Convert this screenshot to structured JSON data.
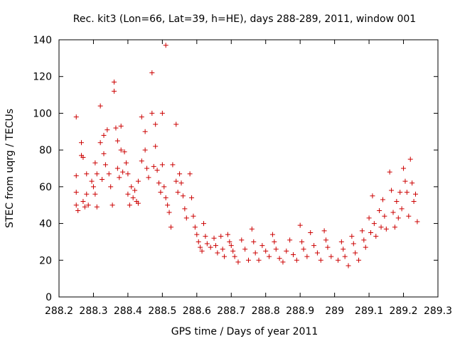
{
  "chart_data": {
    "type": "scatter",
    "title": "Rec. kit3 (Lon=66, Lat=39, h=HE), days 288-289, 2011, window 001",
    "xlabel": "GPS time / Days of year 2011",
    "ylabel": "STEC from uqrg / TECUs",
    "xlim": [
      288.2,
      289.3
    ],
    "ylim": [
      0,
      140
    ],
    "xticks": [
      "288.2",
      "288.3",
      "288.4",
      "288.5",
      "288.6",
      "288.7",
      "288.8",
      "288.9",
      "289",
      "289.1",
      "289.2",
      "289.3"
    ],
    "yticks": [
      "0",
      "20",
      "40",
      "60",
      "80",
      "100",
      "120",
      "140"
    ],
    "marker": "+",
    "color": "#cc0000",
    "series": [
      {
        "name": "STEC",
        "points": [
          [
            288.25,
            98
          ],
          [
            288.25,
            66
          ],
          [
            288.25,
            57
          ],
          [
            288.25,
            50
          ],
          [
            288.255,
            47
          ],
          [
            288.265,
            84
          ],
          [
            288.265,
            77
          ],
          [
            288.27,
            76
          ],
          [
            288.28,
            67
          ],
          [
            288.28,
            56
          ],
          [
            288.27,
            52
          ],
          [
            288.275,
            49
          ],
          [
            288.285,
            50
          ],
          [
            288.295,
            63
          ],
          [
            288.3,
            60
          ],
          [
            288.305,
            73
          ],
          [
            288.305,
            56
          ],
          [
            288.31,
            67
          ],
          [
            288.31,
            49
          ],
          [
            288.32,
            104
          ],
          [
            288.32,
            84
          ],
          [
            288.325,
            64
          ],
          [
            288.33,
            88
          ],
          [
            288.33,
            78
          ],
          [
            288.335,
            72
          ],
          [
            288.34,
            91
          ],
          [
            288.345,
            67
          ],
          [
            288.35,
            60
          ],
          [
            288.355,
            50
          ],
          [
            288.36,
            117
          ],
          [
            288.36,
            112
          ],
          [
            288.365,
            92
          ],
          [
            288.37,
            85
          ],
          [
            288.37,
            70
          ],
          [
            288.375,
            65
          ],
          [
            288.38,
            93
          ],
          [
            288.38,
            80
          ],
          [
            288.385,
            68
          ],
          [
            288.39,
            79
          ],
          [
            288.395,
            73
          ],
          [
            288.4,
            67
          ],
          [
            288.4,
            56
          ],
          [
            288.405,
            50
          ],
          [
            288.41,
            60
          ],
          [
            288.415,
            54
          ],
          [
            288.42,
            58
          ],
          [
            288.425,
            52
          ],
          [
            288.43,
            63
          ],
          [
            288.43,
            51
          ],
          [
            288.44,
            74
          ],
          [
            288.44,
            98
          ],
          [
            288.45,
            90
          ],
          [
            288.45,
            80
          ],
          [
            288.455,
            70
          ],
          [
            288.46,
            65
          ],
          [
            288.47,
            122
          ],
          [
            288.47,
            100
          ],
          [
            288.475,
            71
          ],
          [
            288.48,
            94
          ],
          [
            288.48,
            82
          ],
          [
            288.485,
            69
          ],
          [
            288.49,
            62
          ],
          [
            288.495,
            57
          ],
          [
            288.5,
            100
          ],
          [
            288.5,
            72
          ],
          [
            288.505,
            60
          ],
          [
            288.51,
            137
          ],
          [
            288.51,
            54
          ],
          [
            288.515,
            50
          ],
          [
            288.52,
            46
          ],
          [
            288.525,
            38
          ],
          [
            288.53,
            72
          ],
          [
            288.54,
            94
          ],
          [
            288.54,
            63
          ],
          [
            288.545,
            57
          ],
          [
            288.55,
            67
          ],
          [
            288.555,
            62
          ],
          [
            288.56,
            55
          ],
          [
            288.565,
            48
          ],
          [
            288.57,
            43
          ],
          [
            288.58,
            67
          ],
          [
            288.585,
            54
          ],
          [
            288.59,
            44
          ],
          [
            288.595,
            38
          ],
          [
            288.6,
            34
          ],
          [
            288.605,
            30
          ],
          [
            288.61,
            27
          ],
          [
            288.615,
            25
          ],
          [
            288.62,
            40
          ],
          [
            288.625,
            33
          ],
          [
            288.63,
            29
          ],
          [
            288.64,
            27
          ],
          [
            288.65,
            32
          ],
          [
            288.655,
            28
          ],
          [
            288.66,
            24
          ],
          [
            288.67,
            33
          ],
          [
            288.675,
            26
          ],
          [
            288.68,
            22
          ],
          [
            288.69,
            34
          ],
          [
            288.695,
            30
          ],
          [
            288.7,
            28
          ],
          [
            288.705,
            25
          ],
          [
            288.71,
            22
          ],
          [
            288.72,
            19
          ],
          [
            288.73,
            31
          ],
          [
            288.74,
            26
          ],
          [
            288.75,
            20
          ],
          [
            288.76,
            37
          ],
          [
            288.765,
            30
          ],
          [
            288.77,
            24
          ],
          [
            288.78,
            20
          ],
          [
            288.79,
            28
          ],
          [
            288.8,
            25
          ],
          [
            288.81,
            22
          ],
          [
            288.82,
            34
          ],
          [
            288.825,
            30
          ],
          [
            288.83,
            26
          ],
          [
            288.84,
            21
          ],
          [
            288.85,
            19
          ],
          [
            288.86,
            25
          ],
          [
            288.87,
            31
          ],
          [
            288.88,
            23
          ],
          [
            288.89,
            20
          ],
          [
            288.9,
            39
          ],
          [
            288.905,
            30
          ],
          [
            288.91,
            26
          ],
          [
            288.92,
            22
          ],
          [
            288.93,
            35
          ],
          [
            288.94,
            28
          ],
          [
            288.95,
            24
          ],
          [
            288.96,
            20
          ],
          [
            288.97,
            36
          ],
          [
            288.975,
            31
          ],
          [
            288.98,
            27
          ],
          [
            288.99,
            22
          ],
          [
            289.01,
            20
          ],
          [
            289.02,
            30
          ],
          [
            289.025,
            26
          ],
          [
            289.03,
            22
          ],
          [
            289.04,
            17
          ],
          [
            289.05,
            33
          ],
          [
            289.055,
            29
          ],
          [
            289.06,
            24
          ],
          [
            289.07,
            20
          ],
          [
            289.08,
            36
          ],
          [
            289.085,
            31
          ],
          [
            289.09,
            27
          ],
          [
            289.1,
            43
          ],
          [
            289.105,
            35
          ],
          [
            289.11,
            55
          ],
          [
            289.115,
            40
          ],
          [
            289.12,
            33
          ],
          [
            289.13,
            47
          ],
          [
            289.135,
            38
          ],
          [
            289.14,
            53
          ],
          [
            289.145,
            44
          ],
          [
            289.15,
            37
          ],
          [
            289.16,
            68
          ],
          [
            289.165,
            58
          ],
          [
            289.17,
            46
          ],
          [
            289.175,
            38
          ],
          [
            289.18,
            52
          ],
          [
            289.185,
            43
          ],
          [
            289.19,
            57
          ],
          [
            289.195,
            48
          ],
          [
            289.2,
            70
          ],
          [
            289.205,
            63
          ],
          [
            289.21,
            57
          ],
          [
            289.215,
            44
          ],
          [
            289.22,
            75
          ],
          [
            289.225,
            62
          ],
          [
            289.23,
            52
          ],
          [
            289.235,
            56
          ],
          [
            289.24,
            41
          ]
        ]
      }
    ]
  }
}
